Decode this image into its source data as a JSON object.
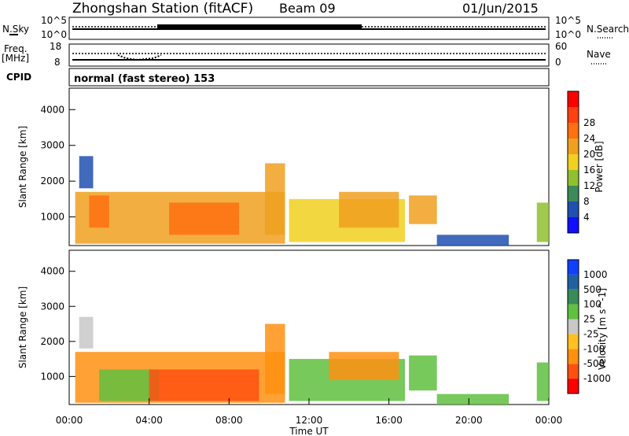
{
  "header": {
    "station": "Zhongshan Station (fitACF)",
    "beam": "Beam 09",
    "date": "01/Jun/2015"
  },
  "top_panels": {
    "nsky_label": "N.Sky",
    "nsearch_label": "N.Search",
    "nsky_ticks": [
      "10^5",
      "10^0"
    ],
    "nsearch_ticks": [
      "10^5",
      "10^0"
    ],
    "freq_label": "Freq.",
    "freq_unit": "[MHz]",
    "freq_ticks": [
      "18",
      "8"
    ],
    "nave_label": "Nave",
    "nave_ticks": [
      "60",
      "0"
    ],
    "cpid_label": "CPID",
    "cpid_text": "normal (fast stereo) 153"
  },
  "colors": {
    "power": [
      "#1010ff",
      "#2050b0",
      "#3c8a5a",
      "#90c030",
      "#f0d020",
      "#f0a020",
      "#ff7010",
      "#ff4010",
      "#ff0000"
    ],
    "velocity": [
      "#ff0000",
      "#ff5010",
      "#ff9010",
      "#ffc020",
      "#c8c8c8",
      "#60c040",
      "#3a8a5a",
      "#2060a0",
      "#1040ff"
    ],
    "axis": "#000000"
  },
  "chart_data": [
    {
      "type": "heatmap",
      "title": "",
      "xlabel": "",
      "ylabel": "Slant Range [km]",
      "colorbar_label": "Power [dB]",
      "colorbar_ticks": [
        "4",
        "8",
        "12",
        "16",
        "20",
        "24",
        "28"
      ],
      "x_ticks": [],
      "y_ticks": [
        "1000",
        "2000",
        "3000",
        "4000"
      ],
      "xlim_hours": [
        0,
        24
      ],
      "ylim": [
        200,
        4600
      ],
      "region_hours": [
        {
          "h0": 0.3,
          "h1": 10.8,
          "r0": 250,
          "r1": 1700,
          "value": 24
        },
        {
          "h0": 1.0,
          "h1": 2.0,
          "r0": 700,
          "r1": 1600,
          "value": 28
        },
        {
          "h0": 5.0,
          "h1": 8.5,
          "r0": 500,
          "r1": 1400,
          "value": 28
        },
        {
          "h0": 9.8,
          "h1": 10.8,
          "r0": 500,
          "r1": 2500,
          "value": 24
        },
        {
          "h0": 11.0,
          "h1": 16.8,
          "r0": 300,
          "r1": 1500,
          "value": 20
        },
        {
          "h0": 13.5,
          "h1": 16.5,
          "r0": 700,
          "r1": 1700,
          "value": 24
        },
        {
          "h0": 0.5,
          "h1": 1.2,
          "r0": 1800,
          "r1": 2700,
          "value": 8
        },
        {
          "h0": 17.0,
          "h1": 18.4,
          "r0": 800,
          "r1": 1600,
          "value": 24
        },
        {
          "h0": 18.4,
          "h1": 22.0,
          "r0": 200,
          "r1": 500,
          "value": 8
        },
        {
          "h0": 23.4,
          "h1": 24.0,
          "r0": 300,
          "r1": 1400,
          "value": 16
        }
      ]
    },
    {
      "type": "heatmap",
      "title": "",
      "xlabel": "Time UT",
      "ylabel": "Slant Range [km]",
      "colorbar_label": "Velocity [m s^-1]",
      "colorbar_ticks": [
        "-1000",
        "-500",
        "-100",
        "-25",
        "25",
        "100",
        "500",
        "1000"
      ],
      "x_ticks": [
        "00:00",
        "04:00",
        "08:00",
        "12:00",
        "16:00",
        "20:00",
        "00:00"
      ],
      "y_ticks": [
        "1000",
        "2000",
        "3000",
        "4000"
      ],
      "xlim_hours": [
        0,
        24
      ],
      "ylim": [
        200,
        4600
      ],
      "region_hours": [
        {
          "h0": 0.3,
          "h1": 10.8,
          "r0": 250,
          "r1": 1700,
          "value": -100
        },
        {
          "h0": 1.5,
          "h1": 4.5,
          "r0": 300,
          "r1": 1200,
          "value": 100
        },
        {
          "h0": 4.0,
          "h1": 9.5,
          "r0": 300,
          "r1": 1200,
          "value": -500
        },
        {
          "h0": 9.8,
          "h1": 10.8,
          "r0": 500,
          "r1": 2500,
          "value": -100
        },
        {
          "h0": 11.0,
          "h1": 16.8,
          "r0": 300,
          "r1": 1500,
          "value": 100
        },
        {
          "h0": 13.0,
          "h1": 16.5,
          "r0": 900,
          "r1": 1700,
          "value": -100
        },
        {
          "h0": 0.5,
          "h1": 1.2,
          "r0": 1800,
          "r1": 2700,
          "value": 25
        },
        {
          "h0": 17.0,
          "h1": 18.4,
          "r0": 600,
          "r1": 1600,
          "value": 100
        },
        {
          "h0": 18.4,
          "h1": 22.0,
          "r0": 200,
          "r1": 500,
          "value": 100
        },
        {
          "h0": 23.4,
          "h1": 24.0,
          "r0": 300,
          "r1": 1400,
          "value": 100
        }
      ]
    }
  ]
}
